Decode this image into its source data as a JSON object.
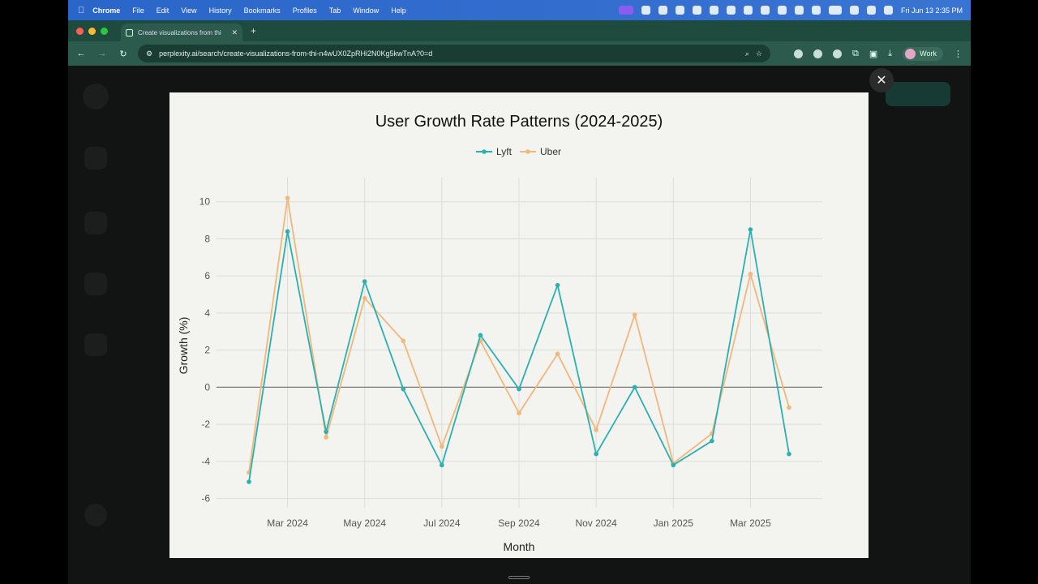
{
  "menubar": {
    "items": [
      "Chrome",
      "File",
      "Edit",
      "View",
      "History",
      "Bookmarks",
      "Profiles",
      "Tab",
      "Window",
      "Help"
    ],
    "clock": "Fri Jun 13  2:35 PM"
  },
  "browser": {
    "tab_title": "Create visualizations from thi",
    "url": "perplexity.ai/search/create-visualizations-from-thi-n4wUX0ZpRHi2N0Kg5kwTnA?0=d",
    "profile_label": "Work"
  },
  "colors": {
    "lyft": "#2bb0b2",
    "uber": "#f2b77a",
    "menubar": "#2f6fd0",
    "chrome_frame": "#2c5a4c"
  },
  "chart_data": {
    "type": "line",
    "title": "User Growth Rate Patterns (2024-2025)",
    "xlabel": "Month",
    "ylabel": "Growth (%)",
    "x": [
      "2024-02",
      "2024-03",
      "2024-04",
      "2024-05",
      "2024-06",
      "2024-07",
      "2024-08",
      "2024-09",
      "2024-10",
      "2024-11",
      "2024-12",
      "2025-01",
      "2025-02",
      "2025-03",
      "2025-04"
    ],
    "x_tick_labels": [
      "Mar 2024",
      "May 2024",
      "Jul 2024",
      "Sep 2024",
      "Nov 2024",
      "Jan 2025",
      "Mar 2025"
    ],
    "y_ticks": [
      -6,
      -4,
      -2,
      0,
      2,
      4,
      6,
      8,
      10
    ],
    "ylim": [
      -6.5,
      11.3
    ],
    "grid": true,
    "legend_position": "top-center",
    "series": [
      {
        "name": "Lyft",
        "color": "#2bb0b2",
        "values": [
          -5.1,
          8.4,
          -2.4,
          5.7,
          -0.1,
          -4.2,
          2.8,
          -0.1,
          5.5,
          -3.6,
          0.0,
          -4.2,
          -2.9,
          8.5,
          -3.6
        ]
      },
      {
        "name": "Uber",
        "color": "#f2b77a",
        "values": [
          -4.6,
          10.2,
          -2.7,
          4.8,
          2.5,
          -3.2,
          2.5,
          -1.4,
          1.8,
          -2.3,
          3.9,
          -4.1,
          -2.5,
          6.1,
          -1.1
        ]
      }
    ]
  }
}
